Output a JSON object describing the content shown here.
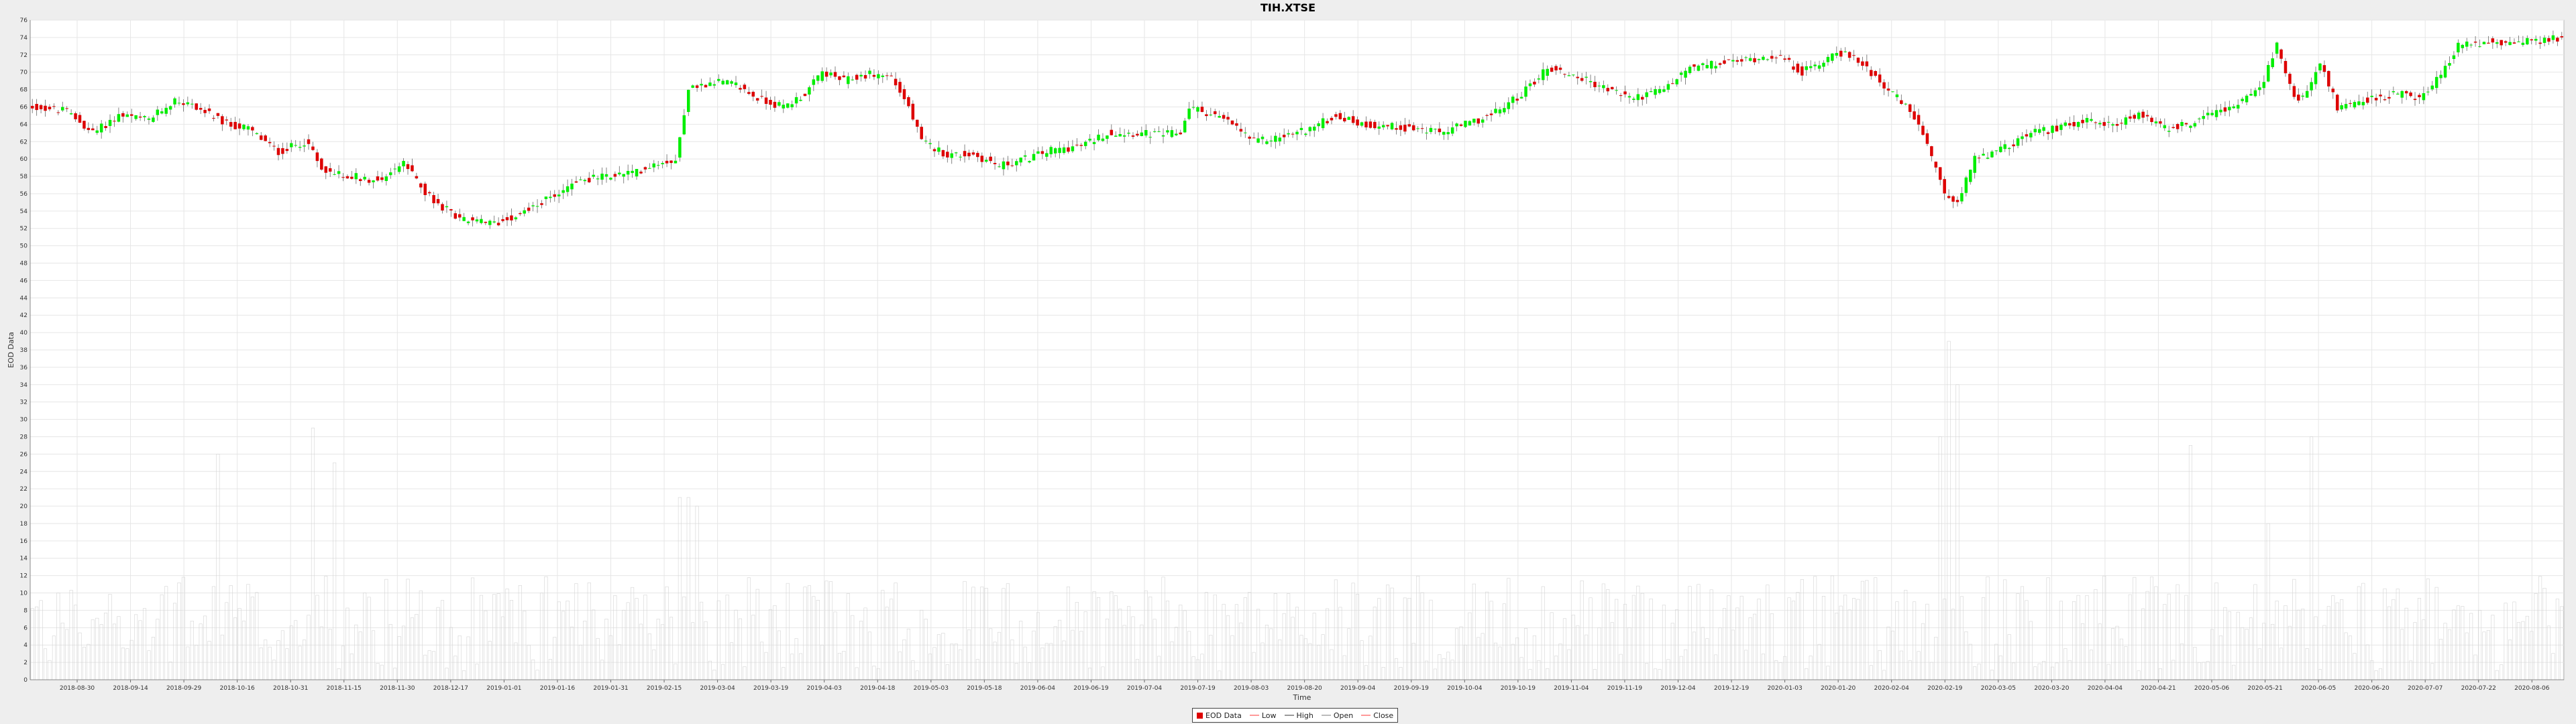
{
  "chart_data": {
    "type": "candlestick",
    "title": "TIH.XTSE",
    "xlabel": "Time",
    "ylabel": "EOD Data",
    "ylim": [
      0,
      76
    ],
    "y_ticks": [
      0,
      2,
      4,
      6,
      8,
      10,
      12,
      14,
      16,
      18,
      20,
      22,
      24,
      26,
      28,
      30,
      32,
      34,
      36,
      38,
      40,
      42,
      44,
      46,
      48,
      50,
      52,
      54,
      56,
      58,
      60,
      62,
      64,
      66,
      68,
      70,
      72,
      74,
      76
    ],
    "x_tick_labels": [
      "2018-08-30",
      "2018-09-14",
      "2018-09-29",
      "2018-10-16",
      "2018-10-31",
      "2018-11-15",
      "2018-11-30",
      "2018-12-17",
      "2019-01-01",
      "2019-01-16",
      "2019-01-31",
      "2019-02-15",
      "2019-03-04",
      "2019-03-19",
      "2019-04-03",
      "2019-04-18",
      "2019-05-03",
      "2019-05-18",
      "2019-06-04",
      "2019-06-19",
      "2019-07-04",
      "2019-07-19",
      "2019-08-03",
      "2019-08-20",
      "2019-09-04",
      "2019-09-19",
      "2019-10-04",
      "2019-10-19",
      "2019-11-04",
      "2019-11-19",
      "2019-12-04",
      "2019-12-19",
      "2020-01-03",
      "2020-01-20",
      "2020-02-04",
      "2020-02-19",
      "2020-03-05",
      "2020-03-20",
      "2020-04-04",
      "2020-04-21",
      "2020-05-06",
      "2020-05-21",
      "2020-06-05",
      "2020-06-20",
      "2020-07-07",
      "2020-07-22",
      "2020-08-06"
    ],
    "colors": {
      "up": "#00ee00",
      "down": "#dd0000",
      "wick": "#666666",
      "volume": "#d4d4d4",
      "grid": "#e6e6e6"
    },
    "close_path": [
      [
        0,
        66
      ],
      [
        8,
        65.5
      ],
      [
        14,
        63
      ],
      [
        20,
        65
      ],
      [
        27,
        64.5
      ],
      [
        33,
        66.8
      ],
      [
        38,
        66
      ],
      [
        45,
        64
      ],
      [
        50,
        63.5
      ],
      [
        57,
        60.8
      ],
      [
        63,
        62
      ],
      [
        68,
        58.5
      ],
      [
        75,
        58
      ],
      [
        80,
        57.5
      ],
      [
        86,
        59.5
      ],
      [
        93,
        55
      ],
      [
        100,
        53
      ],
      [
        107,
        52.5
      ],
      [
        114,
        54
      ],
      [
        120,
        55.5
      ],
      [
        126,
        57.5
      ],
      [
        133,
        58
      ],
      [
        140,
        58.5
      ],
      [
        144,
        59.5
      ],
      [
        149,
        60
      ],
      [
        152,
        68
      ],
      [
        158,
        69
      ],
      [
        163,
        68.5
      ],
      [
        168,
        67
      ],
      [
        174,
        66
      ],
      [
        179,
        67.5
      ],
      [
        183,
        70
      ],
      [
        188,
        69
      ],
      [
        194,
        69.8
      ],
      [
        199,
        69.5
      ],
      [
        203,
        66
      ],
      [
        206,
        62
      ],
      [
        212,
        60.5
      ],
      [
        218,
        60.5
      ],
      [
        224,
        59.2
      ],
      [
        230,
        60
      ],
      [
        236,
        61
      ],
      [
        243,
        61.5
      ],
      [
        249,
        63
      ],
      [
        255,
        63
      ],
      [
        261,
        62.8
      ],
      [
        266,
        63
      ],
      [
        268,
        66
      ],
      [
        274,
        65
      ],
      [
        278,
        64
      ],
      [
        283,
        62
      ],
      [
        289,
        62.5
      ],
      [
        296,
        63.5
      ],
      [
        302,
        65
      ],
      [
        308,
        64
      ],
      [
        314,
        63.8
      ],
      [
        320,
        63.5
      ],
      [
        326,
        63
      ],
      [
        332,
        64
      ],
      [
        338,
        65
      ],
      [
        345,
        67.5
      ],
      [
        351,
        70.5
      ],
      [
        358,
        69.5
      ],
      [
        365,
        68
      ],
      [
        371,
        67
      ],
      [
        378,
        68
      ],
      [
        384,
        70.5
      ],
      [
        391,
        71
      ],
      [
        398,
        71.5
      ],
      [
        404,
        72
      ],
      [
        410,
        70
      ],
      [
        414,
        71
      ],
      [
        418,
        72.5
      ],
      [
        424,
        71
      ],
      [
        430,
        68
      ],
      [
        434,
        66
      ],
      [
        437,
        64
      ],
      [
        440,
        60
      ],
      [
        443,
        56
      ],
      [
        446,
        55
      ],
      [
        450,
        60
      ],
      [
        456,
        61
      ],
      [
        463,
        63
      ],
      [
        469,
        63.5
      ],
      [
        476,
        64.5
      ],
      [
        482,
        64
      ],
      [
        488,
        65
      ],
      [
        494,
        63.5
      ],
      [
        500,
        64
      ],
      [
        506,
        65.5
      ],
      [
        512,
        66.5
      ],
      [
        516,
        68
      ],
      [
        520,
        73
      ],
      [
        524,
        67
      ],
      [
        527,
        67.5
      ],
      [
        530,
        71
      ],
      [
        534,
        66
      ],
      [
        538,
        66.5
      ],
      [
        543,
        67
      ],
      [
        548,
        67.5
      ],
      [
        553,
        67
      ],
      [
        557,
        69
      ],
      [
        562,
        73
      ],
      [
        568,
        73.5
      ],
      [
        575,
        73.5
      ],
      [
        581,
        73.5
      ],
      [
        586,
        74
      ]
    ],
    "volume_spikes": [
      [
        43,
        26
      ],
      [
        65,
        29
      ],
      [
        70,
        25
      ],
      [
        150,
        21
      ],
      [
        152,
        21
      ],
      [
        154,
        20
      ],
      [
        442,
        28
      ],
      [
        444,
        39
      ],
      [
        446,
        34
      ],
      [
        528,
        28
      ],
      [
        500,
        27
      ],
      [
        518,
        18
      ]
    ],
    "legend": [
      {
        "label": "EOD Data",
        "kind": "box",
        "color": "#dd0000"
      },
      {
        "label": "Low",
        "kind": "line",
        "color": "#ff9999"
      },
      {
        "label": "High",
        "kind": "line",
        "color": "#999999"
      },
      {
        "label": "Open",
        "kind": "line",
        "color": "#bbbbbb"
      },
      {
        "label": "Close",
        "kind": "line",
        "color": "#ff9999"
      }
    ]
  }
}
